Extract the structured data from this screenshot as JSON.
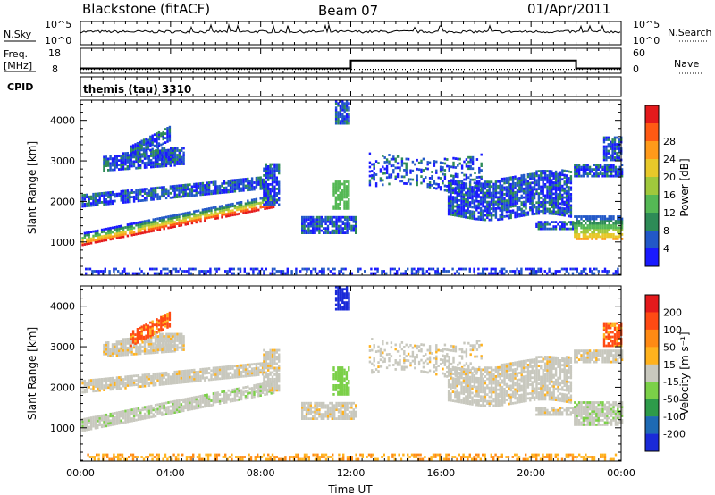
{
  "header": {
    "station": "Blackstone (fitACF)",
    "beam": "Beam 07",
    "date": "01/Apr/2011"
  },
  "noise_panel": {
    "left_label": "N.Sky",
    "right_label": "N.Search",
    "left_ticks": [
      "10^5",
      "10^0"
    ],
    "right_ticks": [
      "10^5",
      "10^0"
    ]
  },
  "freq_panel": {
    "left_label_line1": "Freq.",
    "left_label_line2": "[MHz]",
    "right_label": "Nave",
    "left_ticks": [
      "18",
      "8"
    ],
    "right_ticks": [
      "60",
      "0"
    ],
    "freq_mhz": {
      "x_hours": [
        0,
        12,
        12,
        22,
        22,
        24
      ],
      "values": [
        10.5,
        10.5,
        14.5,
        14.5,
        10.5,
        10.5
      ]
    }
  },
  "cpid": {
    "label": "CPID",
    "program": "themis (tau) 3310"
  },
  "chart_data": [
    {
      "type": "heatmap",
      "name": "power",
      "ylabel": "Slant Range [km]",
      "xlabel": "Time UT",
      "ylim": [
        180,
        4500
      ],
      "yticks": [
        "1000",
        "2000",
        "3000",
        "4000"
      ],
      "xticks": [
        "00:00",
        "04:00",
        "08:00",
        "12:00",
        "16:00",
        "20:00",
        "00:00"
      ],
      "colorbar": {
        "label": "Power [dB]",
        "ticks": [
          "4",
          "8",
          "12",
          "16",
          "20",
          "24",
          "28"
        ],
        "colors": [
          "#1a1aff",
          "#2258c8",
          "#2e8b57",
          "#55b855",
          "#a0c83c",
          "#e8c82a",
          "#ff9a1a",
          "#ff5a14",
          "#e41a1c"
        ]
      }
    },
    {
      "type": "heatmap",
      "name": "velocity",
      "ylabel": "Slant Range [km]",
      "xlabel": "Time UT",
      "ylim": [
        180,
        4500
      ],
      "yticks": [
        "1000",
        "2000",
        "3000",
        "4000"
      ],
      "xticks": [
        "00:00",
        "04:00",
        "08:00",
        "12:00",
        "16:00",
        "20:00",
        "00:00"
      ],
      "colorbar": {
        "label": "Velocity [m s⁻¹]",
        "ticks": [
          "200",
          "100",
          "50",
          "15",
          "-15",
          "-50",
          "-100",
          "-200"
        ],
        "colors": [
          "#1a2ad8",
          "#1e6ab4",
          "#2e9b4a",
          "#7bd048",
          "#c8c8be",
          "#ffb21e",
          "#ff8a14",
          "#ff4a14",
          "#e41a1c"
        ]
      }
    }
  ]
}
